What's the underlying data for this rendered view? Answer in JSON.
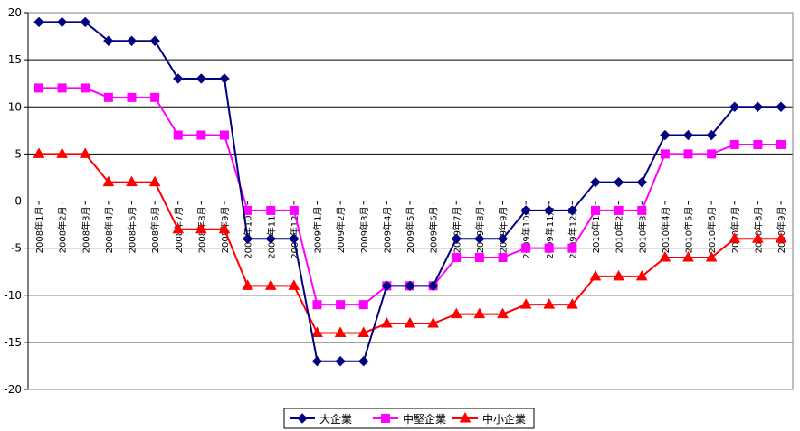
{
  "chart_data": {
    "type": "line",
    "title": "",
    "xlabel": "",
    "ylabel": "",
    "ylim": [
      -20,
      20
    ],
    "yticks": [
      20,
      15,
      10,
      5,
      0,
      -5,
      -10,
      -15,
      -20
    ],
    "grid": true,
    "legend_position": "bottom",
    "categories": [
      "2008年1月",
      "2008年2月",
      "2008年3月",
      "2008年4月",
      "2008年5月",
      "2008年6月",
      "2008年7月",
      "2008年8月",
      "2008年9月",
      "2008年10月",
      "2008年11月",
      "2008年12月",
      "2009年1月",
      "2009年2月",
      "2009年3月",
      "2009年4月",
      "2009年5月",
      "2009年6月",
      "2009年7月",
      "2009年8月",
      "2009年9月",
      "2009年10月",
      "2009年11月",
      "2009年12月",
      "2010年1月",
      "2010年2月",
      "2010年3月",
      "2010年4月",
      "2010年5月",
      "2010年6月",
      "2010年7月",
      "2010年8月",
      "2010年9月"
    ],
    "series": [
      {
        "name": "大企業",
        "color": "#000080",
        "marker": "diamond",
        "values": [
          19,
          19,
          19,
          17,
          17,
          17,
          13,
          13,
          13,
          -4,
          -4,
          -4,
          -17,
          -17,
          -17,
          -9,
          -9,
          -9,
          -4,
          -4,
          -4,
          -1,
          -1,
          -1,
          2,
          2,
          2,
          7,
          7,
          7,
          10,
          10,
          10
        ]
      },
      {
        "name": "中堅企業",
        "color": "#ff00ff",
        "marker": "square",
        "values": [
          12,
          12,
          12,
          11,
          11,
          11,
          7,
          7,
          7,
          -1,
          -1,
          -1,
          -11,
          -11,
          -11,
          -9,
          -9,
          -9,
          -6,
          -6,
          -6,
          -5,
          -5,
          -5,
          -1,
          -1,
          -1,
          5,
          5,
          5,
          6,
          6,
          6
        ]
      },
      {
        "name": "中小企業",
        "color": "#ff0000",
        "marker": "triangle",
        "values": [
          5,
          5,
          5,
          2,
          2,
          2,
          -3,
          -3,
          -3,
          -9,
          -9,
          -9,
          -14,
          -14,
          -14,
          -13,
          -13,
          -13,
          -12,
          -12,
          -12,
          -11,
          -11,
          -11,
          -8,
          -8,
          -8,
          -6,
          -6,
          -6,
          -4,
          -4,
          -4
        ]
      }
    ]
  }
}
